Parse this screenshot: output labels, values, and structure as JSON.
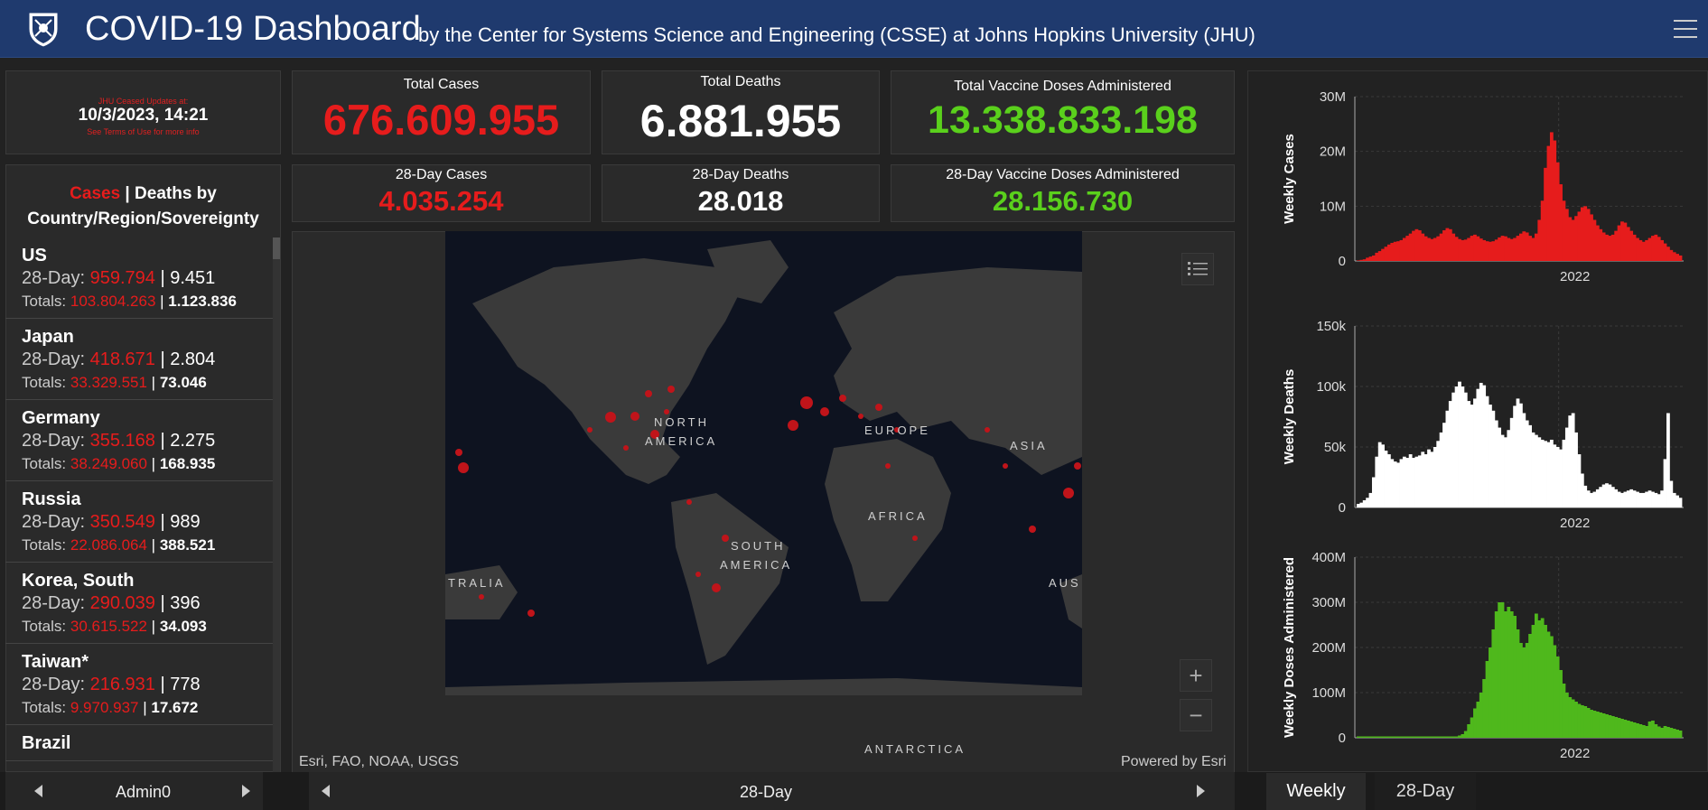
{
  "header": {
    "title": "COVID-19 Dashboard",
    "subtitle": "by the Center for Systems Science and Engineering (CSSE) at Johns Hopkins University (JHU)"
  },
  "date_box": {
    "notice": "JHU Ceased Updates at:",
    "datetime": "10/3/2023, 14:21",
    "terms": "See Terms of Use for more info"
  },
  "stats": {
    "total_cases_label": "Total Cases",
    "total_cases_value": "676.609.955",
    "total_deaths_label": "Total Deaths",
    "total_deaths_value": "6.881.955",
    "total_vaccine_label": "Total Vaccine Doses Administered",
    "total_vaccine_value": "13.338.833.198",
    "day28_cases_label": "28-Day Cases",
    "day28_cases_value": "4.035.254",
    "day28_deaths_label": "28-Day Deaths",
    "day28_deaths_value": "28.018",
    "day28_vaccine_label": "28-Day Vaccine Doses Administered",
    "day28_vaccine_value": "28.156.730"
  },
  "list": {
    "title_cases": "Cases",
    "title_sep": " | ",
    "title_rest": "Deaths by",
    "title_line2": "Country/Region/Sovereignty",
    "day_label": "28-Day: ",
    "totals_label": "Totals: ",
    "sep": " | ",
    "items": [
      {
        "name": "US",
        "day_cases": "959.794",
        "day_deaths": "9.451",
        "tot_cases": "103.804.263",
        "tot_deaths": "1.123.836"
      },
      {
        "name": "Japan",
        "day_cases": "418.671",
        "day_deaths": "2.804",
        "tot_cases": "33.329.551",
        "tot_deaths": "73.046"
      },
      {
        "name": "Germany",
        "day_cases": "355.168",
        "day_deaths": "2.275",
        "tot_cases": "38.249.060",
        "tot_deaths": "168.935"
      },
      {
        "name": "Russia",
        "day_cases": "350.549",
        "day_deaths": "989",
        "tot_cases": "22.086.064",
        "tot_deaths": "388.521"
      },
      {
        "name": "Korea, South",
        "day_cases": "290.039",
        "day_deaths": "396",
        "tot_cases": "30.615.522",
        "tot_deaths": "34.093"
      },
      {
        "name": "Taiwan*",
        "day_cases": "216.931",
        "day_deaths": "778",
        "tot_cases": "9.970.937",
        "tot_deaths": "17.672"
      },
      {
        "name": "Brazil",
        "day_cases": "",
        "day_deaths": "",
        "tot_cases": "",
        "tot_deaths": ""
      }
    ]
  },
  "map": {
    "labels": {
      "north_america_1": "NORTH",
      "north_america_2": "AMERICA",
      "europe": "EUROPE",
      "asia": "ASIA",
      "africa": "AFRICA",
      "south_america_1": "SOUTH",
      "south_america_2": "AMERICA",
      "australia_left": "TRALIA",
      "australia_right": "AUS",
      "antarctica": "ANTARCTICA"
    },
    "attribution_left": "Esri, FAO, NOAA, USGS",
    "attribution_right": "Powered by Esri",
    "zoom_in": "+",
    "zoom_out": "−"
  },
  "footer": {
    "left_label": "Admin0",
    "center_label": "28-Day",
    "tab_weekly": "Weekly",
    "tab_28day": "28-Day"
  },
  "chart_data": [
    {
      "type": "area",
      "ylabel": "Weekly Cases",
      "color": "#e61c1c",
      "yticks": [
        "0",
        "10M",
        "20M",
        "30M"
      ],
      "ylim": [
        0,
        30000000
      ],
      "xtick": "2022",
      "values": [
        0.1,
        0.2,
        0.3,
        0.6,
        0.8,
        1.0,
        1.5,
        1.8,
        2.2,
        2.6,
        3.0,
        3.3,
        3.5,
        3.6,
        3.8,
        4.2,
        4.6,
        5.0,
        5.5,
        5.8,
        5.6,
        5.0,
        4.5,
        4.2,
        4.0,
        4.2,
        4.5,
        5.0,
        5.6,
        6.0,
        5.8,
        5.0,
        4.4,
        4.0,
        3.8,
        3.9,
        4.2,
        4.6,
        4.8,
        4.5,
        4.1,
        3.8,
        3.6,
        3.5,
        3.6,
        3.9,
        4.3,
        4.6,
        4.5,
        4.2,
        4.0,
        4.2,
        4.6,
        5.0,
        5.4,
        5.2,
        4.6,
        4.2,
        5.0,
        7.5,
        11.0,
        17.0,
        21.0,
        23.5,
        22.0,
        18.0,
        14.0,
        11.0,
        9.5,
        8.0,
        7.5,
        8.2,
        9.0,
        9.8,
        10.0,
        9.5,
        8.5,
        7.5,
        6.5,
        5.8,
        5.2,
        4.8,
        4.6,
        4.8,
        5.5,
        6.5,
        7.2,
        7.0,
        6.2,
        5.5,
        4.8,
        4.2,
        3.8,
        3.5,
        3.8,
        4.2,
        4.6,
        4.8,
        4.4,
        3.8,
        3.2,
        2.6,
        2.0,
        1.6,
        1.3,
        1.0
      ]
    },
    {
      "type": "bar",
      "ylabel": "Weekly Deaths",
      "color": "#ffffff",
      "yticks": [
        "0",
        "50k",
        "100k",
        "150k"
      ],
      "ylim": [
        0,
        150000
      ],
      "xtick": "2022",
      "values": [
        3,
        4,
        6,
        8,
        12,
        25,
        42,
        54,
        52,
        47,
        44,
        40,
        38,
        37,
        40,
        42,
        41,
        44,
        41,
        42,
        43,
        46,
        44,
        48,
        46,
        50,
        55,
        62,
        70,
        80,
        88,
        95,
        100,
        104,
        100,
        95,
        88,
        85,
        90,
        98,
        103,
        101,
        92,
        85,
        80,
        72,
        66,
        60,
        58,
        64,
        74,
        84,
        90,
        86,
        78,
        72,
        68,
        62,
        60,
        58,
        56,
        55,
        54,
        56,
        52,
        50,
        48,
        56,
        66,
        76,
        78,
        62,
        44,
        28,
        18,
        14,
        12,
        13,
        15,
        17,
        19,
        20,
        19,
        17,
        15,
        13,
        12,
        13,
        14,
        15,
        14,
        13,
        12,
        12,
        13,
        14,
        13,
        12,
        11,
        14,
        40,
        78,
        22,
        12,
        10,
        8
      ]
    },
    {
      "type": "bar",
      "ylabel": "Weekly Doses Administered",
      "color": "#4fb81c",
      "yticks": [
        "0",
        "100M",
        "200M",
        "300M",
        "400M"
      ],
      "ylim": [
        0,
        400000000
      ],
      "xtick": "2022",
      "values": [
        3,
        3,
        3,
        3,
        3,
        3,
        3,
        3,
        3,
        3,
        3,
        3,
        3,
        3,
        3,
        3,
        3,
        3,
        3,
        3,
        3,
        3,
        3,
        3,
        3,
        3,
        3,
        3,
        3,
        3,
        3,
        3,
        3,
        5,
        8,
        15,
        30,
        45,
        65,
        80,
        100,
        130,
        170,
        200,
        240,
        280,
        300,
        300,
        280,
        290,
        280,
        270,
        240,
        210,
        200,
        210,
        230,
        250,
        275,
        260,
        265,
        250,
        235,
        225,
        205,
        180,
        150,
        120,
        100,
        90,
        85,
        80,
        75,
        72,
        70,
        66,
        62,
        60,
        58,
        56,
        54,
        52,
        50,
        48,
        46,
        44,
        42,
        40,
        38,
        36,
        34,
        32,
        30,
        28,
        26,
        36,
        38,
        30,
        25,
        22,
        26,
        24,
        22,
        20,
        18,
        16
      ]
    }
  ]
}
